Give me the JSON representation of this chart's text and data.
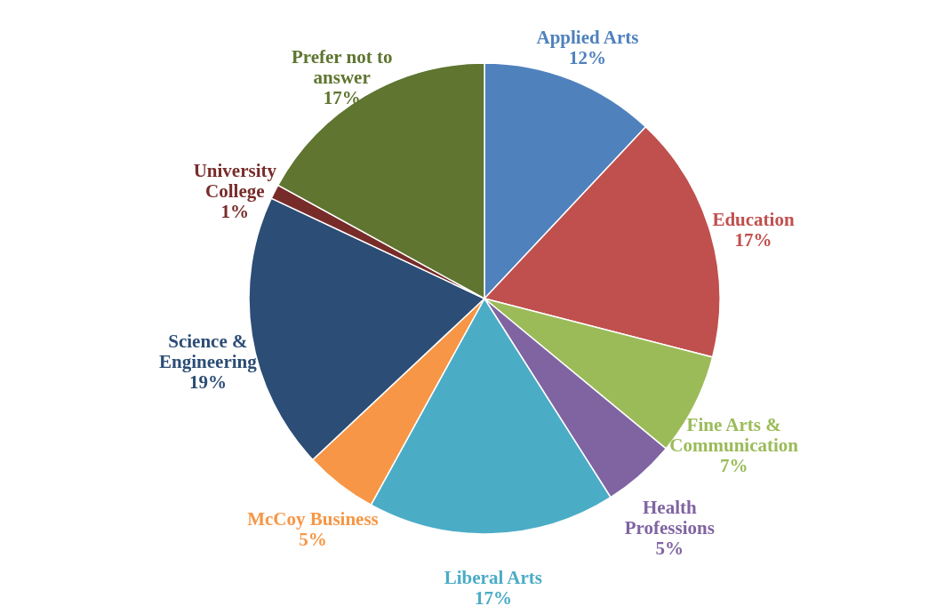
{
  "chart_data": {
    "type": "pie",
    "categories": [
      "Applied Arts",
      "Education",
      "Fine Arts & Communication",
      "Health Professions",
      "Liberal Arts",
      "McCoy Business",
      "Science & Engineering",
      "University College",
      "Prefer not to answer"
    ],
    "values": [
      12,
      17,
      7,
      5,
      17,
      5,
      19,
      1,
      17
    ],
    "value_labels": [
      "12%",
      "17%",
      "7%",
      "5%",
      "17%",
      "5%",
      "19%",
      "1%",
      "17%"
    ],
    "colors": [
      "#4f81bd",
      "#c0504d",
      "#9bbb59",
      "#8064a2",
      "#4bacc6",
      "#f79646",
      "#2c4d75",
      "#772c2a",
      "#5f7530"
    ]
  }
}
